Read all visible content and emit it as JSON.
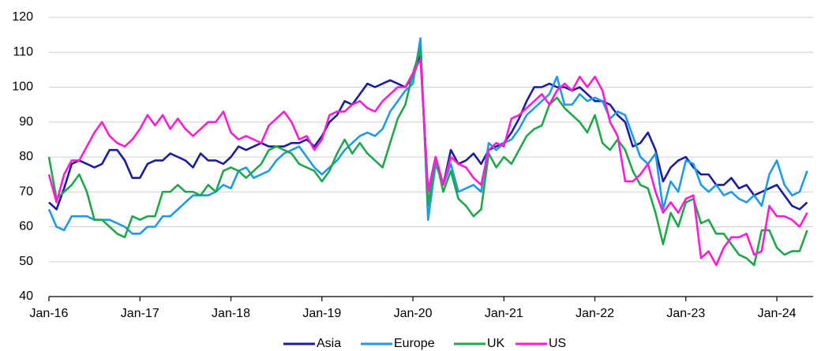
{
  "chart_data": {
    "type": "line",
    "categories": [
      "Jan-16",
      null,
      null,
      null,
      null,
      null,
      null,
      null,
      null,
      null,
      null,
      null,
      "Jan-17",
      null,
      null,
      null,
      null,
      null,
      null,
      null,
      null,
      null,
      null,
      null,
      "Jan-18",
      null,
      null,
      null,
      null,
      null,
      null,
      null,
      null,
      null,
      null,
      null,
      "Jan-19",
      null,
      null,
      null,
      null,
      null,
      null,
      null,
      null,
      null,
      null,
      null,
      "Jan-20",
      null,
      null,
      null,
      null,
      null,
      null,
      null,
      null,
      null,
      null,
      null,
      "Jan-21",
      null,
      null,
      null,
      null,
      null,
      null,
      null,
      null,
      null,
      null,
      null,
      "Jan-22",
      null,
      null,
      null,
      null,
      null,
      null,
      null,
      null,
      null,
      null,
      null,
      "Jan-23",
      null,
      null,
      null,
      null,
      null,
      null,
      null,
      null,
      null,
      null,
      null,
      "Jan-24",
      null,
      null,
      null,
      null
    ],
    "series": [
      {
        "name": "Asia",
        "color": "#1c1ca0",
        "values": [
          67,
          65,
          71,
          78,
          79,
          78,
          77,
          78,
          82,
          82,
          79,
          74,
          74,
          78,
          79,
          79,
          81,
          80,
          79,
          77,
          81,
          79,
          79,
          78,
          80,
          83,
          82,
          83,
          84,
          83,
          83,
          83,
          84,
          84,
          85,
          83,
          86,
          90,
          92,
          96,
          95,
          98,
          101,
          100,
          101,
          102,
          101,
          100,
          103,
          109,
          70,
          80,
          72,
          82,
          78,
          79,
          81,
          78,
          82,
          83,
          84,
          87,
          91,
          96,
          100,
          100,
          101,
          100,
          100,
          99,
          100,
          98,
          96,
          96,
          95,
          92,
          90,
          83,
          84,
          87,
          82,
          73,
          77,
          79,
          80,
          77,
          75,
          75,
          72,
          72,
          74,
          71,
          72,
          69,
          70,
          71,
          72,
          69,
          66,
          65,
          67
        ]
      },
      {
        "name": "Europe",
        "color": "#1e9be8",
        "values": [
          65,
          60,
          59,
          63,
          63,
          63,
          62,
          62,
          62,
          61,
          60,
          58,
          58,
          60,
          60,
          63,
          63,
          65,
          67,
          69,
          69,
          69,
          70,
          72,
          71,
          76,
          77,
          74,
          75,
          76,
          79,
          81,
          82,
          83,
          80,
          77,
          75,
          77,
          79,
          82,
          84,
          86,
          87,
          86,
          88,
          93,
          96,
          99,
          101,
          114,
          62,
          78,
          72,
          78,
          70,
          71,
          72,
          70,
          84,
          82,
          84,
          85,
          88,
          92,
          94,
          96,
          98,
          103,
          95,
          95,
          98,
          96,
          97,
          96,
          91,
          93,
          92,
          86,
          80,
          78,
          81,
          65,
          73,
          70,
          79,
          78,
          72,
          70,
          72,
          69,
          70,
          68,
          67,
          69,
          66,
          75,
          79,
          72,
          69,
          70,
          76
        ]
      },
      {
        "name": "UK",
        "color": "#1ea84a",
        "values": [
          80,
          68,
          70,
          72,
          75,
          70,
          62,
          62,
          60,
          58,
          57,
          63,
          62,
          63,
          63,
          70,
          70,
          72,
          70,
          70,
          69,
          72,
          70,
          76,
          77,
          76,
          74,
          76,
          78,
          82,
          83,
          82,
          81,
          78,
          77,
          76,
          73,
          76,
          81,
          85,
          81,
          84,
          81,
          79,
          77,
          84,
          91,
          95,
          104,
          111,
          66,
          80,
          70,
          76,
          68,
          66,
          63,
          65,
          81,
          77,
          80,
          78,
          82,
          86,
          88,
          89,
          95,
          97,
          94,
          92,
          90,
          87,
          92,
          84,
          82,
          85,
          82,
          76,
          72,
          71,
          64,
          55,
          64,
          60,
          67,
          68,
          61,
          62,
          58,
          58,
          55,
          52,
          51,
          49,
          59,
          59,
          54,
          52,
          53,
          53,
          59
        ]
      },
      {
        "name": "US",
        "color": "#ff1ad6",
        "values": [
          75,
          67,
          75,
          79,
          79,
          83,
          87,
          90,
          86,
          84,
          83,
          85,
          88,
          92,
          89,
          92,
          88,
          91,
          88,
          86,
          88,
          90,
          90,
          93,
          87,
          85,
          86,
          85,
          84,
          89,
          91,
          93,
          90,
          85,
          86,
          82,
          85,
          92,
          93,
          93,
          95,
          96,
          94,
          93,
          96,
          98,
          100,
          100,
          104,
          108,
          70,
          80,
          72,
          80,
          78,
          77,
          74,
          72,
          82,
          84,
          83,
          91,
          92,
          94,
          96,
          98,
          95,
          99,
          101,
          99,
          103,
          100,
          103,
          99,
          90,
          86,
          73,
          73,
          75,
          78,
          70,
          64,
          67,
          64,
          68,
          69,
          51,
          53,
          49,
          54,
          57,
          57,
          58,
          52,
          53,
          66,
          63,
          63,
          62,
          60,
          64
        ]
      }
    ],
    "ylim": [
      40,
      120
    ],
    "yticks": [
      40,
      50,
      60,
      70,
      80,
      90,
      100,
      110,
      120
    ],
    "grid": true,
    "legend": "bottom"
  }
}
